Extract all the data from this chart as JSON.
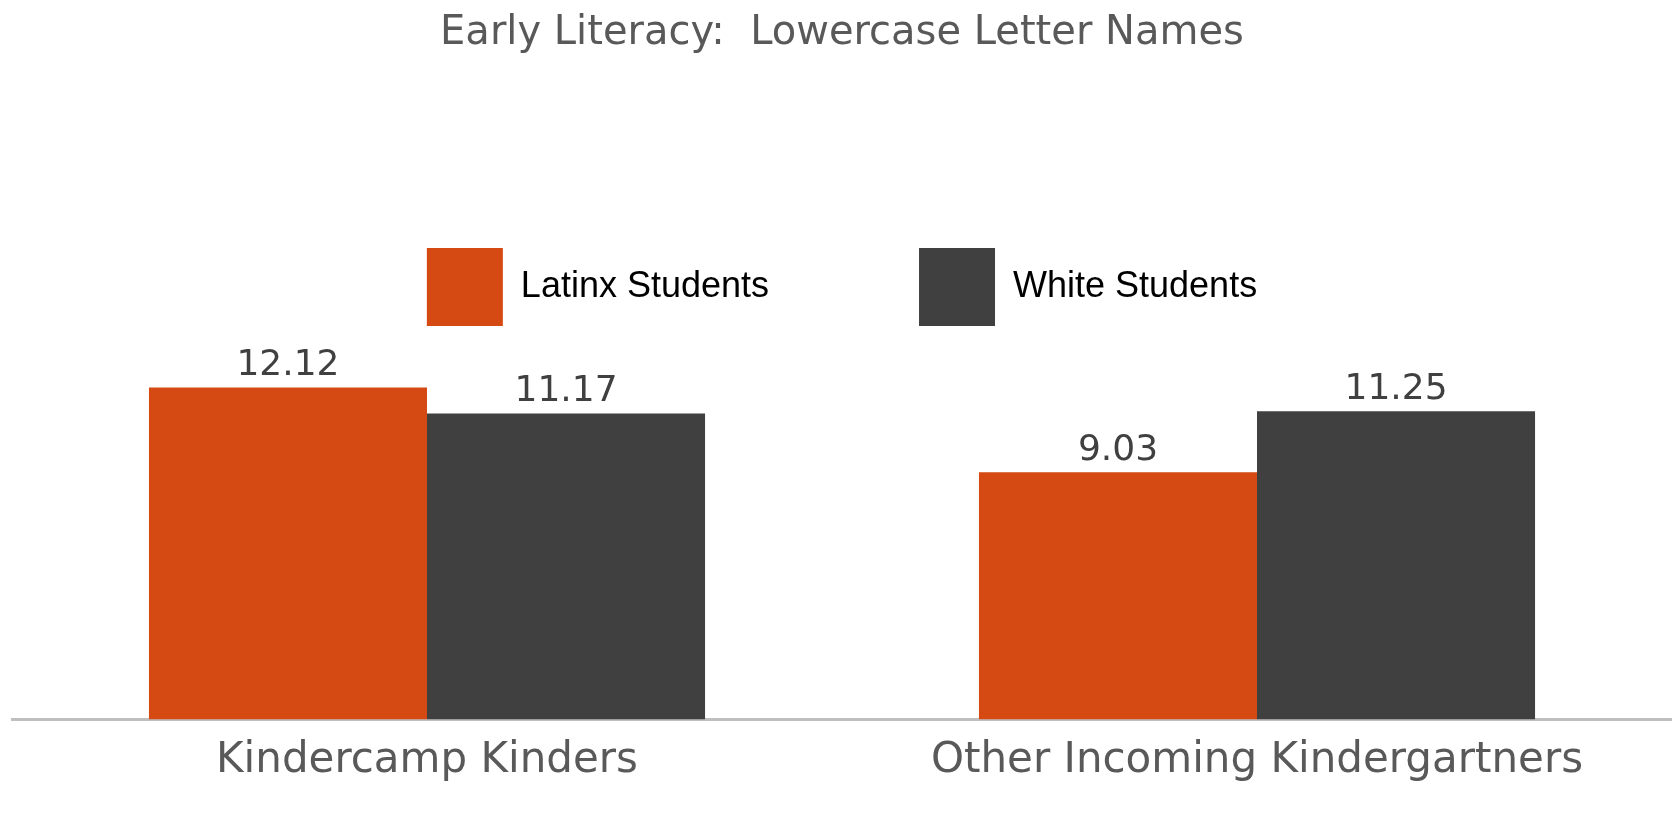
{
  "chart_data": {
    "type": "bar",
    "title": "Early Literacy:  Lowercase Letter Names",
    "categories": [
      "Kindercamp Kinders",
      "Other Incoming Kindergartners"
    ],
    "series": [
      {
        "name": "Latinx Students",
        "color": "#d54a12",
        "values": [
          12.12,
          9.03
        ]
      },
      {
        "name": "White Students",
        "color": "#404040",
        "values": [
          11.17,
          11.25
        ]
      }
    ],
    "data_labels": true,
    "legend": "top",
    "grid": false,
    "tick_labels": "x"
  }
}
